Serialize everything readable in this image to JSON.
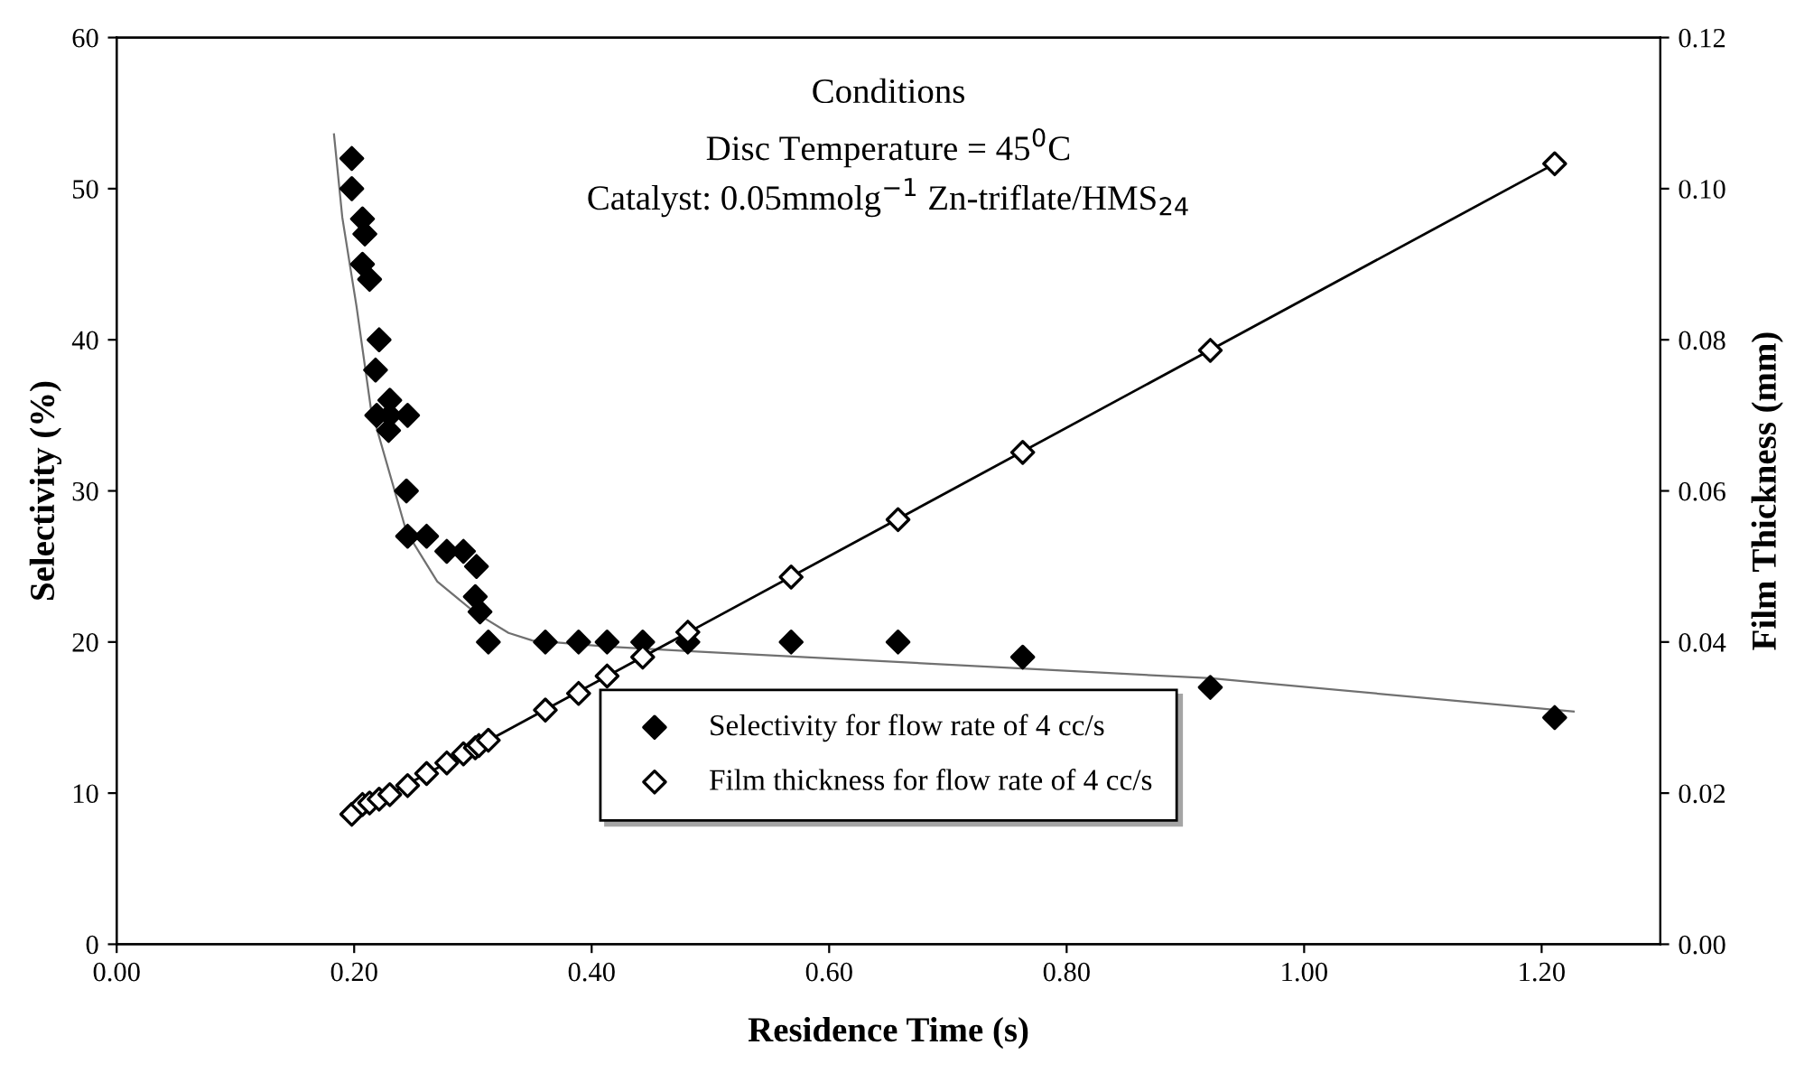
{
  "chart_data": {
    "type": "scatter",
    "xlabel": "Residence Time (s)",
    "ylabel": "Selectivity (%)",
    "y2label": "Film Thickness (mm)",
    "annotations": [
      "Conditions",
      "Disc Temperature = 45$^{0}$C",
      "Catalyst: 0.05mmolg$^{−1}$ Zn-triflate/HMS$_{24}$"
    ],
    "xlim": [
      0,
      1.3
    ],
    "xticks": [
      {
        "value": 0,
        "label": "0.00"
      },
      {
        "value": 0.2,
        "label": "0.20"
      },
      {
        "value": 0.4,
        "label": "0.40"
      },
      {
        "value": 0.6,
        "label": "0.60"
      },
      {
        "value": 0.8,
        "label": "0.80"
      },
      {
        "value": 1.0,
        "label": "1.00"
      },
      {
        "value": 1.2,
        "label": "1.20"
      }
    ],
    "ylim": [
      0,
      60
    ],
    "yticks": [
      0,
      10,
      20,
      30,
      40,
      50,
      60
    ],
    "y2lim": [
      0,
      0.12
    ],
    "y2ticks": [
      {
        "value": 0,
        "label": "0.00"
      },
      {
        "value": 0.02,
        "label": "0.02"
      },
      {
        "value": 0.04,
        "label": "0.04"
      },
      {
        "value": 0.06,
        "label": "0.06"
      },
      {
        "value": 0.08,
        "label": "0.08"
      },
      {
        "value": 0.1,
        "label": "0.10"
      },
      {
        "value": 0.12,
        "label": "0.12"
      }
    ],
    "grid": false,
    "legend": "bottom",
    "marker": "diamond",
    "series": [
      {
        "name": "Selectivity for flow rate of 4 cc/s",
        "color": "#000000",
        "x": [
          0.198,
          0.198,
          0.207,
          0.209,
          0.207,
          0.213,
          0.221,
          0.218,
          0.219,
          0.23,
          0.229,
          0.23,
          0.245,
          0.244,
          0.245,
          0.261,
          0.278,
          0.292,
          0.303,
          0.302,
          0.306,
          0.313,
          0.361,
          0.389,
          0.413,
          0.443,
          0.481,
          0.568,
          0.658,
          0.763,
          0.921,
          1.211
        ],
        "values": [
          52,
          50,
          48,
          47,
          45,
          44,
          40,
          38,
          35,
          36,
          34,
          35,
          35,
          30,
          27,
          27,
          26,
          26,
          25,
          23,
          22,
          20,
          20,
          20,
          20,
          20,
          20,
          20,
          20,
          19,
          17,
          15
        ]
      },
      {
        "type": "line",
        "color": "#707070",
        "marker": "none",
        "x": [
          0.183,
          0.19,
          0.202,
          0.214,
          0.244,
          0.27,
          0.301,
          0.33,
          0.35,
          0.413,
          0.481,
          0.921,
          1.227
        ],
        "values": [
          53.6,
          48.1,
          42.2,
          35.5,
          27.3,
          24.0,
          22.0,
          20.6,
          20.1,
          19.7,
          19.4,
          17.6,
          15.4
        ]
      },
      {
        "name": "Film thickness for flow rate of 4 cc/s",
        "axis": "y2",
        "color": "#000000",
        "x": [
          0.198,
          0.207,
          0.213,
          0.221,
          0.23,
          0.245,
          0.261,
          0.278,
          0.292,
          0.302,
          0.305,
          0.313,
          0.361,
          0.389,
          0.413,
          0.443,
          0.481,
          0.568,
          0.658,
          0.763,
          0.921,
          1.211
        ],
        "values": [
          0.0172,
          0.0185,
          0.0187,
          0.0192,
          0.0198,
          0.021,
          0.0226,
          0.024,
          0.0252,
          0.026,
          0.0263,
          0.027,
          0.031,
          0.0332,
          0.0355,
          0.038,
          0.0413,
          0.0486,
          0.0562,
          0.0651,
          0.0786,
          0.1033
        ]
      },
      {
        "type": "line",
        "axis": "y2",
        "color": "#000000",
        "marker": "none",
        "x": [
          0.198,
          1.211
        ],
        "values": [
          0.0172,
          0.1033
        ]
      }
    ]
  }
}
